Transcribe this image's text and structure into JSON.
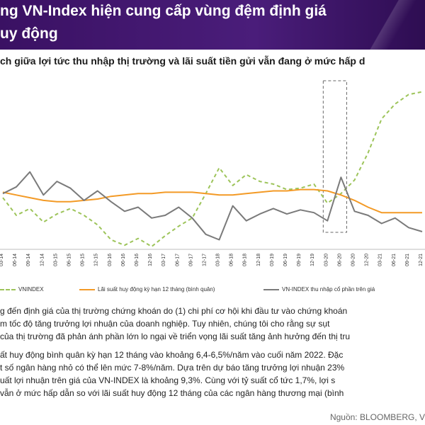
{
  "header": {
    "title_line1": "ng VN-Index hiện cung cấp vùng đệm định giá",
    "title_line2": "uy động",
    "subtitle": "ch giữa lợi tức thu nhập thị trường và lãi suất tiền gửi vẫn đang ở mức hấp d"
  },
  "chart_data": {
    "type": "line",
    "x_ticks": [
      "03-14",
      "06-14",
      "09-14",
      "12-14",
      "03-15",
      "06-15",
      "09-15",
      "12-15",
      "03-16",
      "06-16",
      "09-16",
      "12-16",
      "03-17",
      "06-17",
      "09-17",
      "12-17",
      "03-18",
      "06-18",
      "09-18",
      "12-18",
      "03-19",
      "06-19",
      "09-19",
      "12-19",
      "03-20",
      "06-20",
      "09-20",
      "12-20",
      "03-21",
      "06-21",
      "09-21",
      "12-21"
    ],
    "series": [
      {
        "name": "VNINDEX",
        "color": "#9dc45a",
        "style": "dashed",
        "values": [
          6.7,
          5.4,
          5.9,
          4.9,
          5.5,
          5.9,
          5.4,
          4.7,
          3.6,
          3.2,
          3.7,
          3.1,
          3.9,
          4.6,
          5.2,
          7.0,
          8.9,
          7.6,
          8.4,
          7.9,
          7.7,
          7.3,
          7.4,
          7.7,
          6.3,
          7.0,
          8.0,
          10.0,
          12.5,
          13.6,
          14.3,
          14.5
        ]
      },
      {
        "name": "Lãi suất huy động kỳ hạn 12 tháng (bình quân)",
        "color": "#f39a26",
        "style": "solid",
        "values": [
          7.1,
          6.9,
          6.7,
          6.5,
          6.4,
          6.4,
          6.5,
          6.6,
          6.8,
          6.9,
          7.0,
          7.0,
          7.1,
          7.1,
          7.1,
          7.0,
          6.9,
          6.9,
          7.0,
          7.1,
          7.2,
          7.2,
          7.3,
          7.3,
          7.2,
          6.9,
          6.5,
          6.0,
          5.6,
          5.6,
          5.6,
          5.6
        ]
      },
      {
        "name": "VN-INDEX thu nhập cổ phần trên giá",
        "color": "#7a7a7a",
        "style": "solid",
        "values": [
          7.0,
          7.5,
          8.6,
          6.9,
          7.9,
          7.4,
          6.5,
          7.2,
          6.4,
          5.7,
          6.0,
          5.2,
          5.4,
          6.0,
          5.2,
          4.0,
          3.6,
          6.1,
          5.0,
          5.5,
          5.9,
          5.5,
          5.8,
          5.6,
          5.0,
          8.2,
          5.7,
          5.4,
          4.8,
          5.2,
          4.5,
          4.2
        ]
      }
    ],
    "highlight_range": [
      "03-20",
      "06-20"
    ]
  },
  "source": "Nguồn: BLOOMBERG, V",
  "paragraphs": [
    [
      "g đến định giá của thị trường chứng khoán do (1) chi phí cơ hội khi đầu tư vào chứng khoán",
      "m tốc độ tăng trưởng lợi nhuận của doanh nghiệp. Tuy nhiên, chúng tôi cho rằng sự sụt",
      "của thị trường đã phản ánh phần lớn lo ngại về triển vọng lãi suất tăng ảnh hưởng đến thị tru"
    ],
    [
      "ất huy động bình quân kỳ hạn 12 tháng vào khoảng 6,4-6,5%/năm vào cuối năm 2022. Đặc",
      "t số ngân hàng nhỏ có thể lên mức 7-8%/năm. Dựa trên dự báo tăng trưởng lợi nhuận 23%",
      "uất lợi nhuận trên giá của VN-INDEX là khoảng 9,3%. Cùng với tỷ suất cổ tức 1,7%, lợi s",
      "vẫn ở mức hấp dẫn so với lãi suất huy động 12 tháng của các ngân hàng thương mại (bình"
    ]
  ]
}
